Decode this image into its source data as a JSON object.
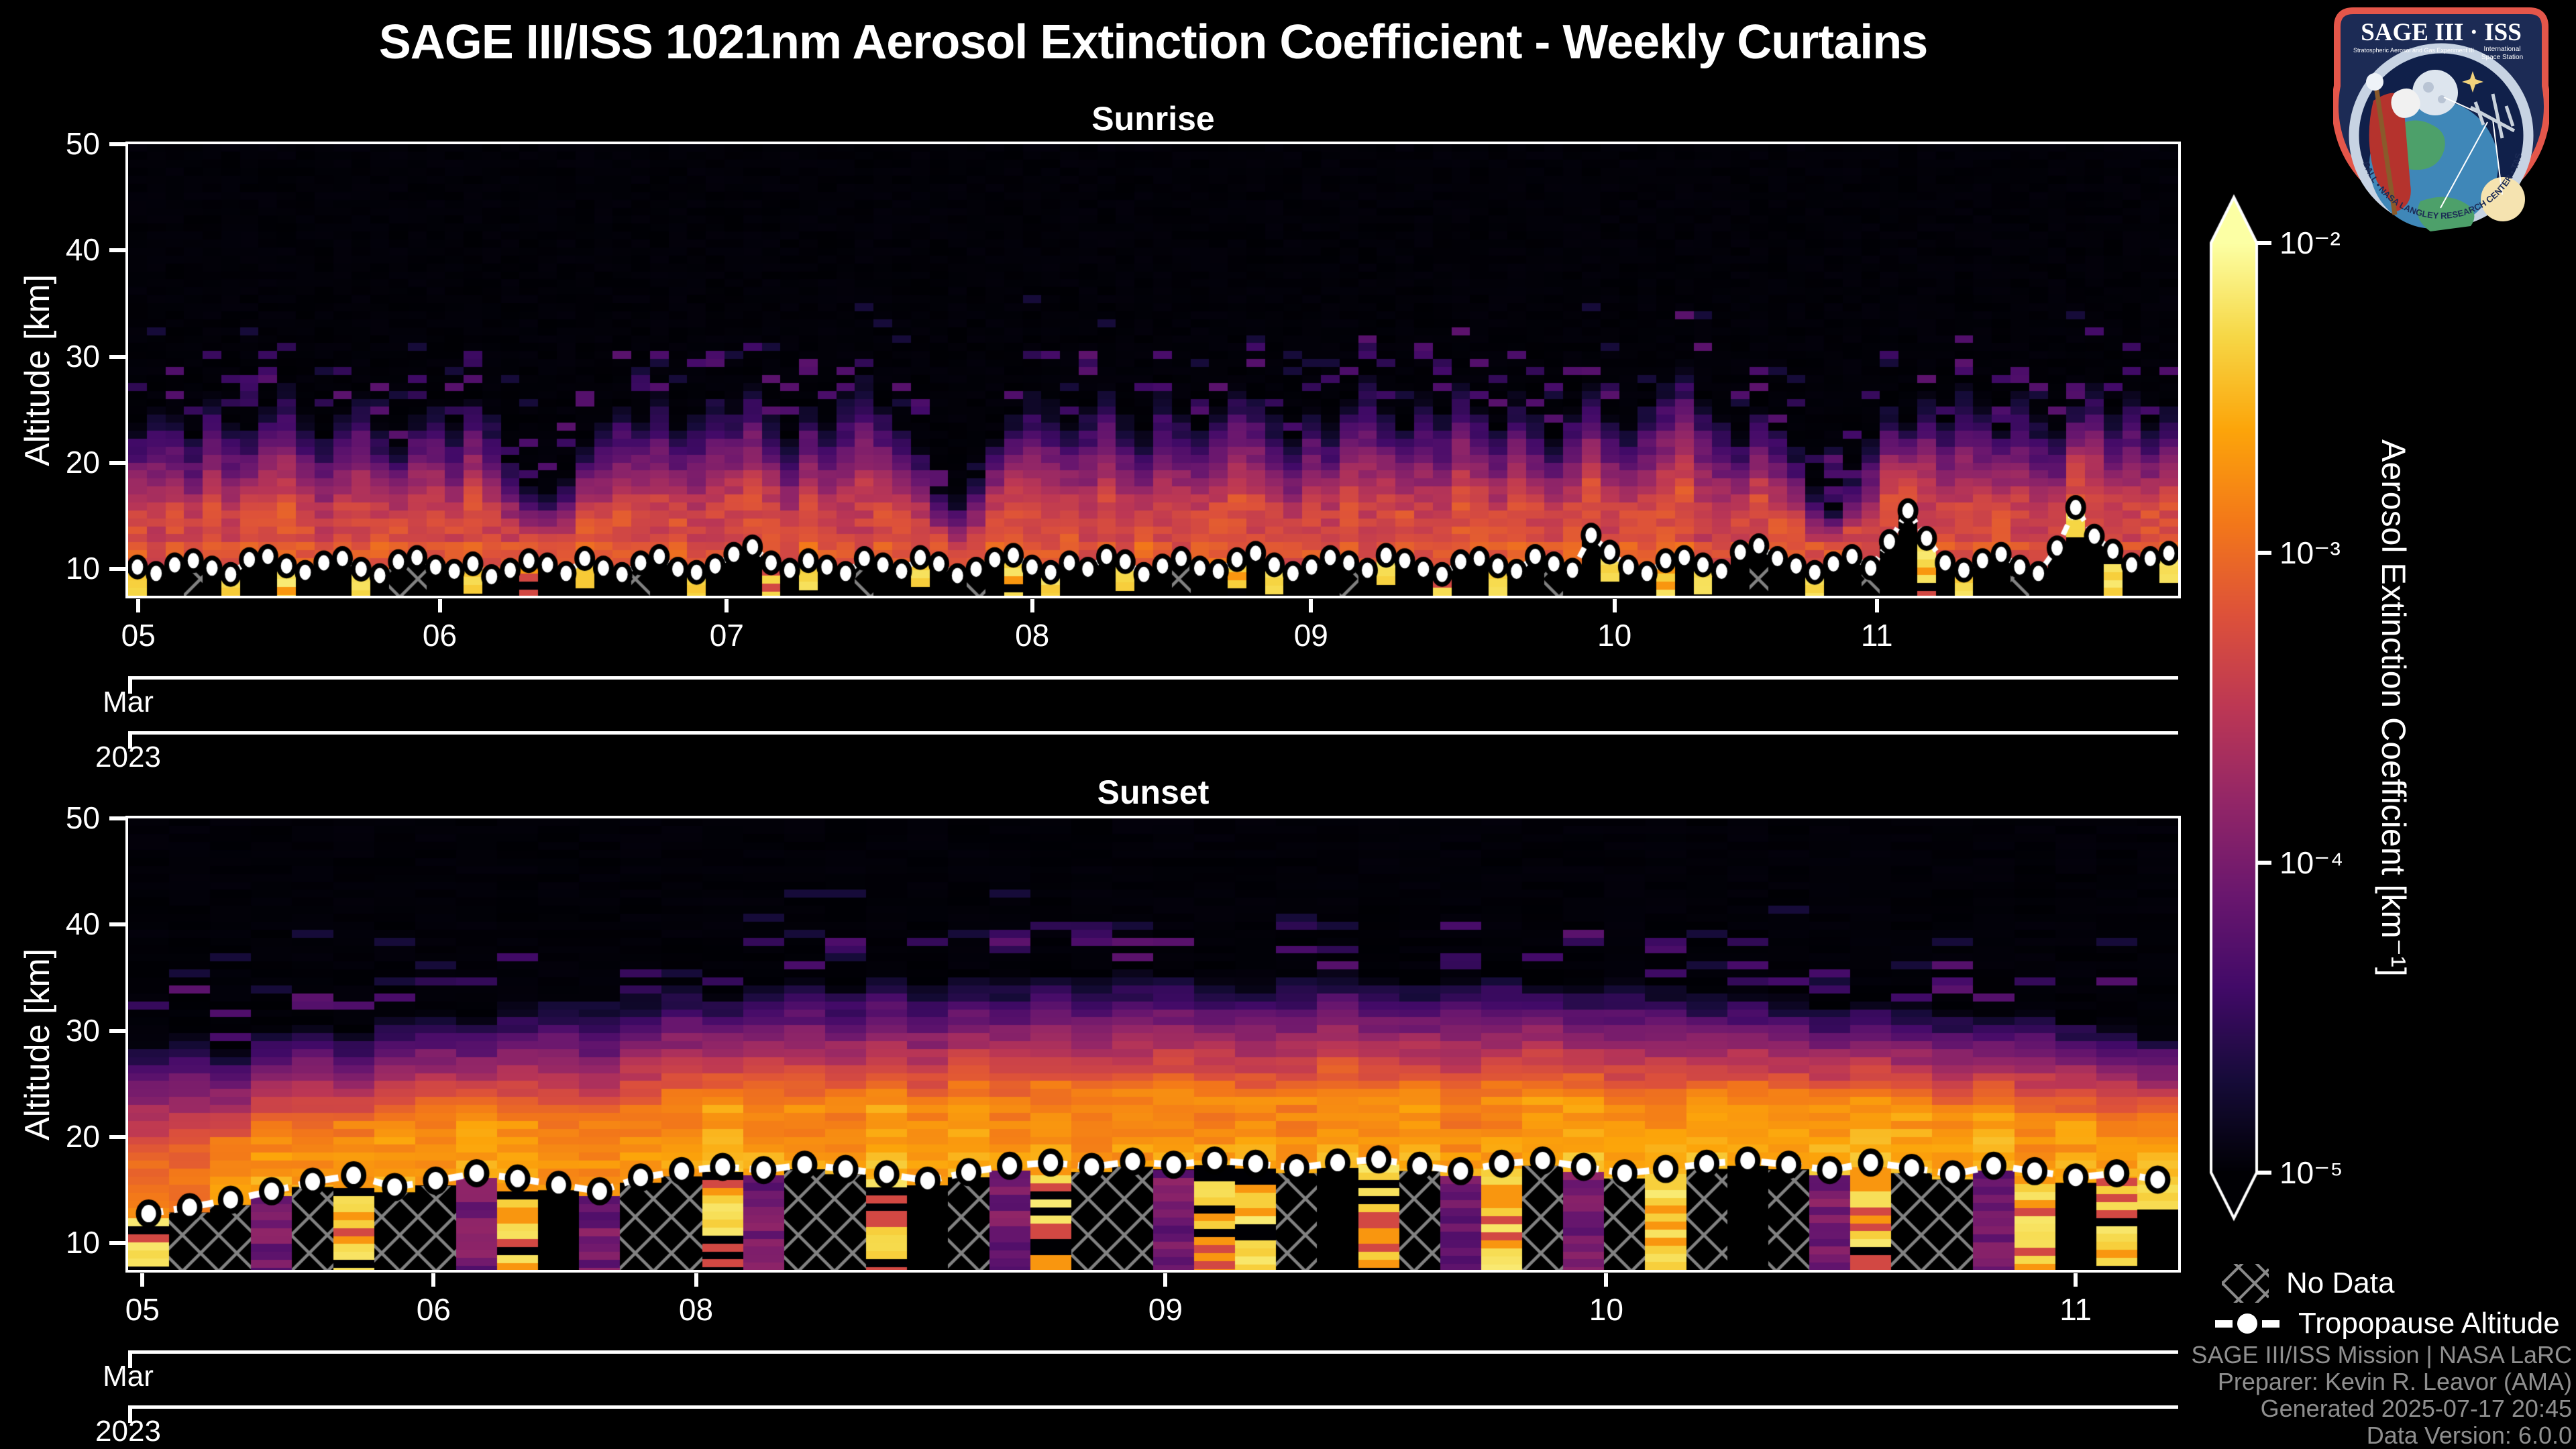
{
  "chart_data": {
    "type": "heatmap",
    "title": "SAGE III/ISS 1021nm Aerosol Extinction Coefficient - Weekly Curtains",
    "x_axis": {
      "month_row_label": "Mar",
      "year_row_label": "2023"
    },
    "colorbar": {
      "label": "Aerosol Extinction Coefficient [km⁻¹]",
      "tick_labels": [
        "10⁻²",
        "10⁻³",
        "10⁻⁴",
        "10⁻⁵"
      ],
      "tick_exponents": [
        -2,
        -3,
        -4,
        -5
      ],
      "range_log10": [
        -5,
        -2
      ],
      "colormap": "inferno",
      "stops": [
        "#000004",
        "#160b39",
        "#420a68",
        "#6a176e",
        "#932667",
        "#bc3754",
        "#dd513a",
        "#f37819",
        "#fca50a",
        "#f6d746",
        "#fcffa4"
      ]
    },
    "legend_entries": [
      "No Data",
      "Tropopause Altitude"
    ],
    "panels": [
      {
        "subtitle": "Sunrise",
        "ylabel": "Altitude [km]",
        "ylim": [
          7.5,
          50
        ],
        "yticks": [
          10,
          20,
          30,
          40,
          50
        ],
        "xticks": [
          {
            "label": "05",
            "f": 0.005
          },
          {
            "label": "06",
            "f": 0.152
          },
          {
            "label": "07",
            "f": 0.292
          },
          {
            "label": "08",
            "f": 0.441
          },
          {
            "label": "09",
            "f": 0.577
          },
          {
            "label": "10",
            "f": 0.725
          },
          {
            "label": "11",
            "f": 0.853
          }
        ],
        "peak_log10": -3.3,
        "tropopause_km": [
          10.2,
          9.6,
          10.4,
          10.8,
          10.1,
          9.5,
          10.9,
          11.2,
          10.3,
          9.7,
          10.6,
          11.0,
          10.0,
          9.4,
          10.7,
          11.1,
          10.2,
          9.8,
          10.5,
          9.3,
          9.9,
          10.8,
          10.4,
          9.6,
          11.0,
          10.1,
          9.5,
          10.6,
          11.2,
          10.0,
          9.7,
          10.3,
          11.4,
          12.1,
          10.6,
          9.9,
          10.8,
          10.2,
          9.6,
          11.0,
          10.4,
          9.8,
          11.1,
          10.5,
          9.4,
          10.0,
          10.9,
          11.3,
          10.2,
          9.7,
          10.6,
          10.0,
          11.2,
          10.7,
          9.5,
          10.3,
          11.0,
          10.1,
          9.8,
          10.9,
          11.5,
          10.4,
          9.6,
          10.2,
          11.1,
          10.6,
          9.9,
          11.3,
          10.8,
          10.0,
          9.5,
          10.7,
          11.0,
          10.3,
          9.8,
          11.2,
          10.5,
          9.9,
          13.2,
          11.6,
          10.2,
          9.6,
          10.8,
          11.1,
          10.4,
          9.8,
          11.6,
          12.2,
          11.0,
          10.3,
          9.7,
          10.5,
          11.2,
          10.1,
          12.6,
          15.5,
          12.9,
          10.6,
          9.9,
          10.8,
          11.4,
          10.2,
          9.6,
          12.0,
          15.8,
          13.1,
          11.7,
          10.4,
          11.0,
          11.5
        ],
        "plume_top_km": [
          24,
          26,
          25,
          23,
          27,
          25,
          24,
          26,
          28,
          25,
          23,
          25,
          27,
          24,
          22,
          25,
          26,
          24,
          27,
          25,
          21,
          18,
          17.5,
          19,
          22,
          24,
          26,
          25,
          27,
          24,
          25,
          27,
          26,
          28,
          25,
          23,
          26,
          24,
          27,
          29,
          26,
          24,
          22,
          18,
          17,
          19,
          23,
          25,
          27,
          26,
          24,
          26,
          28,
          25,
          23,
          27,
          25,
          24,
          26,
          28,
          27,
          25,
          23,
          26,
          24,
          27,
          29,
          26,
          24,
          27,
          25,
          28,
          26,
          24,
          27,
          25,
          23,
          26,
          28,
          25,
          24,
          26,
          28,
          30,
          27,
          25,
          23,
          26,
          24,
          22,
          18,
          16,
          19,
          23,
          26,
          24,
          27,
          25,
          28,
          26,
          24,
          27,
          25,
          23,
          26,
          28,
          25,
          27,
          24,
          26
        ],
        "below_tropopause_code": "ykkhkykkskkkykhhkkykkskkykkhkkykkkskykkhkkykkhkskykkkykkhkkskykkkhkykkskkykkhkkykkskykkhkkykkhkkskykkhkkykskky"
      },
      {
        "subtitle": "Sunset",
        "ylabel": "Altitude [km]",
        "ylim": [
          7.5,
          50
        ],
        "yticks": [
          10,
          20,
          30,
          40,
          50
        ],
        "xticks": [
          {
            "label": "05",
            "f": 0.007
          },
          {
            "label": "06",
            "f": 0.149
          },
          {
            "label": "08",
            "f": 0.277
          },
          {
            "label": "09",
            "f": 0.506
          },
          {
            "label": "10",
            "f": 0.721
          },
          {
            "label": "11",
            "f": 0.95
          }
        ],
        "peak_log10": -2.75,
        "tropopause_km": [
          12.8,
          13.4,
          14.1,
          14.9,
          15.8,
          16.4,
          15.3,
          15.9,
          16.6,
          16.1,
          15.5,
          14.9,
          16.2,
          16.8,
          17.2,
          16.9,
          17.4,
          17.0,
          16.5,
          15.9,
          16.7,
          17.3,
          17.6,
          17.2,
          17.7,
          17.4,
          17.8,
          17.5,
          17.1,
          17.6,
          17.9,
          17.3,
          16.8,
          17.5,
          17.8,
          17.2,
          16.6,
          17.0,
          17.5,
          17.8,
          17.4,
          16.9,
          17.6,
          17.1,
          16.5,
          17.3,
          16.8,
          16.2,
          16.6,
          16.0
        ],
        "plume_top_km": [
          29.5,
          30.0,
          28.8,
          30.5,
          31.2,
          30.2,
          31.8,
          32.4,
          31.5,
          32.8,
          33.4,
          32.6,
          33.8,
          34.5,
          33.9,
          34.8,
          35.2,
          34.6,
          35.5,
          34.9,
          35.8,
          35.2,
          36.0,
          35.4,
          35.9,
          36.2,
          35.6,
          35.0,
          35.7,
          36.1,
          35.3,
          34.8,
          35.5,
          35.9,
          35.2,
          34.6,
          35.0,
          34.4,
          33.8,
          34.2,
          33.5,
          32.9,
          33.6,
          32.8,
          32.2,
          31.8,
          32.5,
          31.5,
          30.8,
          30.2
        ],
        "below_tropopause_code": "shhphshhpskphhsphhskhpshhpsshkshpshphshkhpshhpsksy"
      }
    ]
  },
  "legend": {
    "no_data": "No Data",
    "tropopause": "Tropopause Altitude"
  },
  "footer": {
    "lines": [
      "SAGE III/ISS Mission | NASA LaRC",
      "Preparer: Kevin R. Leavor (AMA)",
      "Generated 2025-07-17 20:45",
      "Data Version: 6.0.0"
    ]
  },
  "logo": {
    "title": "SAGE III · ISS",
    "subtitle_left": "Stratospheric Aerosol and Gas Experiment III",
    "subtitle_right_1": "International",
    "subtitle_right_2": "Space Station",
    "ring_text": "BALL • NASA LANGLEY RESEARCH CENTER • TAS-I • ESA",
    "border_color": "#e4564a",
    "background_color": "#1c2b55"
  }
}
